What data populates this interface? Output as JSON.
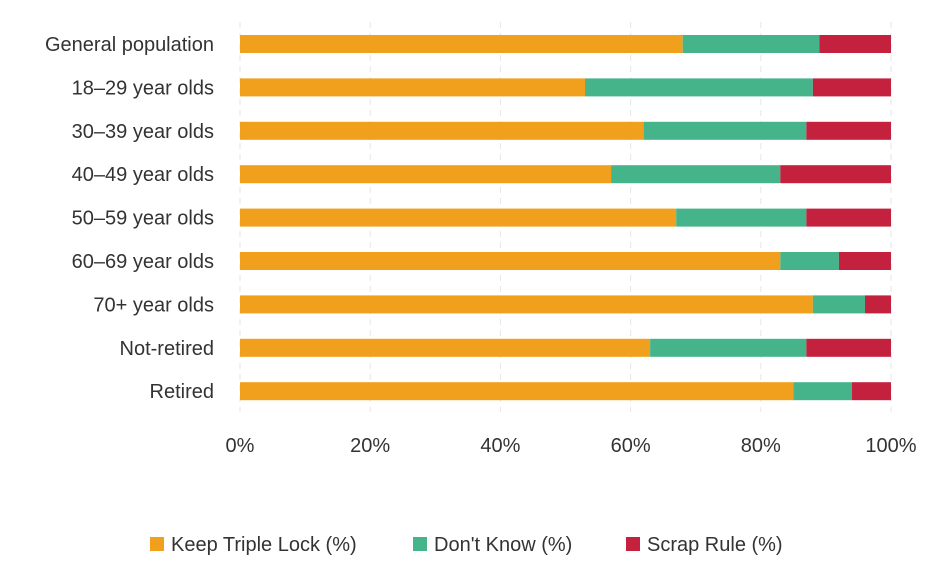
{
  "chart_data": {
    "type": "bar",
    "orientation": "horizontal",
    "stacked": true,
    "categories": [
      "General population",
      "18–29 year olds",
      "30–39 year olds",
      "40–49 year olds",
      "50–59 year olds",
      "60–69 year olds",
      "70+ year olds",
      "Not-retired",
      "Retired"
    ],
    "series": [
      {
        "name": "Keep Triple Lock (%)",
        "color": "#f0a01c",
        "values": [
          68,
          53,
          62,
          57,
          67,
          83,
          88,
          63,
          85
        ]
      },
      {
        "name": "Don't Know (%)",
        "color": "#45b48a",
        "values": [
          21,
          35,
          25,
          26,
          20,
          9,
          8,
          24,
          9
        ]
      },
      {
        "name": "Scrap Rule (%)",
        "color": "#c4213f",
        "values": [
          11,
          12,
          13,
          17,
          13,
          8,
          4,
          13,
          6
        ]
      }
    ],
    "xlim": [
      0,
      100
    ],
    "xticks": [
      "0%",
      "20%",
      "40%",
      "60%",
      "80%",
      "100%"
    ],
    "grid": true,
    "legend_position": "bottom"
  }
}
